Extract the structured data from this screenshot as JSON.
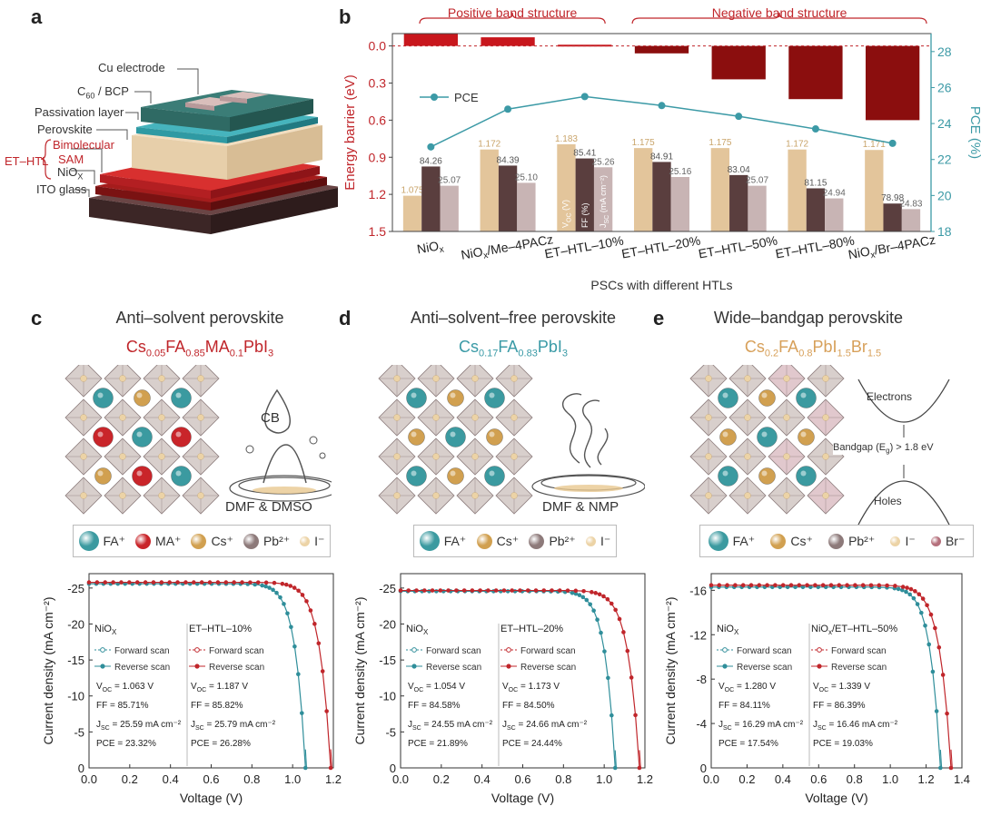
{
  "panels": {
    "a": "a",
    "b": "b",
    "c": "c",
    "d": "d",
    "e": "e"
  },
  "panel_a": {
    "labels": {
      "cu": "Cu electrode",
      "c60": "C",
      "c60sub": "60",
      "c60rest": " / BCP",
      "passivation": "Passivation layer",
      "perovskite": "Perovskite",
      "etl": "ET–HTL",
      "bimolecular": "Bimolecular",
      "sam": "SAM",
      "niox": "NiO",
      "nioxsub": "X",
      "ito": "ITO glass"
    },
    "colors": {
      "passivation": "#3a9aa0",
      "perovskite": "#e8d2b0",
      "sam": "#c0262b",
      "niox": "#8a1c1c",
      "ito": "#4a3030",
      "top": "#2f6f6a",
      "cu": "#c8a9a6"
    }
  },
  "panel_b": {
    "bracket_labels": {
      "positive": "Positive band structure",
      "negative": "Negative band structure"
    },
    "legend_pce": "PCE",
    "bar_annot": {
      "voc": "V",
      "vocsub": "OC",
      "vocunit": " (V)",
      "ff": "FF (%)",
      "jsc": "J",
      "jscsub": "SC",
      "jscunit": " (mA cm⁻²)"
    },
    "xlabels": [
      {
        "main": "NiO",
        "sub": "x",
        "tail": ""
      },
      {
        "main": "NiO",
        "sub": "x",
        "tail": "/Me–4PACz"
      },
      {
        "main": "ET–HTL–10%",
        "sub": "",
        "tail": ""
      },
      {
        "main": "ET–HTL–20%",
        "sub": "",
        "tail": ""
      },
      {
        "main": "ET–HTL–50%",
        "sub": "",
        "tail": ""
      },
      {
        "main": "ET–HTL–80%",
        "sub": "",
        "tail": ""
      },
      {
        "main": "NiO",
        "sub": "x",
        "tail": "/Br–4PACz"
      }
    ],
    "colors": {
      "pos": "#c8171d",
      "neg": "#8b0e0e",
      "pce": "#3c9aa6",
      "voc": "#e3c59b",
      "ff": "#5a3e3e",
      "jsc": "#c8b4b4"
    }
  },
  "chart_data": [
    {
      "type": "bar",
      "title": "",
      "xlabel": "PSCs with different HTLs",
      "ylabel": "Energy barrier (eV)",
      "y2label": "PCE (%)",
      "categories": [
        "NiOx",
        "NiOx/Me-4PACz",
        "ET-HTL-10%",
        "ET-HTL-20%",
        "ET-HTL-50%",
        "ET-HTL-80%",
        "NiOx/Br-4PACz"
      ],
      "ylim": [
        1.5,
        -0.1
      ],
      "y2lim": [
        18,
        29
      ],
      "yticks": [
        "0.0",
        "0.3",
        "0.6",
        "0.9",
        "1.2",
        "1.5"
      ],
      "y2ticks": [
        "18",
        "20",
        "22",
        "24",
        "26",
        "28"
      ],
      "series": [
        {
          "name": "Energy barrier",
          "values": [
            -0.1,
            -0.07,
            -0.01,
            0.06,
            0.27,
            0.43,
            0.6
          ]
        },
        {
          "name": "PCE",
          "values": [
            22.7,
            24.8,
            25.5,
            25.0,
            24.4,
            23.7,
            22.9
          ]
        },
        {
          "values": [
            1.075,
            1.172,
            1.183,
            1.175,
            1.175,
            1.172,
            1.171
          ],
          "labels": [
            "1.075",
            "1.172",
            "1.183",
            "1.175",
            "1.175",
            "1.172",
            "1.171"
          ]
        },
        {
          "values": [
            84.26,
            84.39,
            85.41,
            84.91,
            83.04,
            81.15,
            78.98
          ],
          "labels": [
            "84.26",
            "84.39",
            "85.41",
            "84.91",
            "83.04",
            "81.15",
            "78.98"
          ]
        },
        {
          "values": [
            25.07,
            25.1,
            25.26,
            25.16,
            25.07,
            24.94,
            24.83
          ],
          "labels": [
            "25.07",
            "25.10",
            "25.26",
            "25.16",
            "25.07",
            "24.94",
            "24.83"
          ]
        }
      ]
    },
    {
      "type": "line",
      "xlabel": "Voltage (V)",
      "ylabel": "Current density (mA cm⁻²)",
      "xlim": [
        0,
        1.2
      ],
      "ylim": [
        0,
        -27
      ],
      "xticks": [
        "0.0",
        "0.2",
        "0.4",
        "0.6",
        "0.8",
        "1.0",
        "1.2"
      ],
      "yticks": [
        "0",
        "-5",
        "-10",
        "-15",
        "-20",
        "-25"
      ],
      "series": [
        {
          "name": "NiOx",
          "voc": 1.063,
          "jsc": 25.59,
          "n": 1.5
        },
        {
          "name": "ET–HTL–10%",
          "voc": 1.187,
          "jsc": 25.79,
          "n": 1.55
        }
      ]
    },
    {
      "type": "line",
      "xlabel": "Voltage (V)",
      "ylabel": "Current density (mA cm⁻²)",
      "xlim": [
        0,
        1.2
      ],
      "ylim": [
        0,
        -27
      ],
      "xticks": [
        "0.0",
        "0.2",
        "0.4",
        "0.6",
        "0.8",
        "1.0",
        "1.2"
      ],
      "yticks": [
        "0",
        "-5",
        "-10",
        "-15",
        "-20",
        "-25"
      ],
      "series": [
        {
          "name": "NiOx",
          "voc": 1.054,
          "jsc": 24.55,
          "n": 1.5
        },
        {
          "name": "ET–HTL–20%",
          "voc": 1.173,
          "jsc": 24.66,
          "n": 1.5
        }
      ]
    },
    {
      "type": "line",
      "xlabel": "Voltage (V)",
      "ylabel": "Current density (mA cm⁻²)",
      "xlim": [
        0,
        1.4
      ],
      "ylim": [
        0,
        -17.5
      ],
      "xticks": [
        "0.0",
        "0.2",
        "0.4",
        "0.6",
        "0.8",
        "1.0",
        "1.2",
        "1.4"
      ],
      "yticks": [
        "0",
        "-4",
        "-8",
        "-12",
        "-16"
      ],
      "series": [
        {
          "name": "NiOx",
          "voc": 1.28,
          "jsc": 16.29,
          "n": 1.6
        },
        {
          "name": "NiOx/ET–HTL–50%",
          "voc": 1.339,
          "jsc": 16.46,
          "n": 1.5
        }
      ]
    }
  ],
  "panel_c": {
    "title": "Anti–solvent perovskite",
    "formula": [
      [
        "Cs",
        ""
      ],
      [
        "0.05",
        "s"
      ],
      [
        "FA",
        ""
      ],
      [
        "0.85",
        "s"
      ],
      [
        "MA",
        ""
      ],
      [
        "0.1",
        "s"
      ],
      [
        "PbI",
        ""
      ],
      [
        "3",
        "s"
      ]
    ],
    "process_top": "CB",
    "process_bottom": "DMF & DMSO",
    "legend": [
      [
        "FA⁺",
        "#3b9aa0"
      ],
      [
        "MA⁺",
        "#c9252a"
      ],
      [
        "Cs⁺",
        "#d1a050"
      ],
      [
        "Pb²⁺",
        "#8d7a7a"
      ],
      [
        "I⁻",
        "#ecd3a6"
      ]
    ],
    "jv_legend": {
      "left_head": "NiO",
      "left_head_sub": "X",
      "right_head": "ET–HTL–10%",
      "fwd": "Forward scan",
      "rev": "Reverse scan"
    },
    "jv_stats": {
      "left": [
        [
          "V",
          "OC",
          " = 1.063 V"
        ],
        [
          "FF",
          "",
          "= 85.71%"
        ],
        [
          "J",
          "SC",
          " = 25.59 mA cm⁻²"
        ],
        [
          "PCE",
          "",
          "= 23.32%"
        ]
      ],
      "right": [
        [
          "V",
          "OC",
          " = 1.187 V"
        ],
        [
          "FF",
          "",
          "= 85.82%"
        ],
        [
          "J",
          "SC",
          " = 25.79 mA cm⁻²"
        ],
        [
          "PCE",
          "",
          "= 26.28%"
        ]
      ]
    }
  },
  "panel_d": {
    "title": "Anti–solvent–free perovskite",
    "formula": [
      [
        "Cs",
        ""
      ],
      [
        "0.17",
        "s"
      ],
      [
        "FA",
        ""
      ],
      [
        "0.83",
        "s"
      ],
      [
        "PbI",
        ""
      ],
      [
        "3",
        "s"
      ]
    ],
    "process_bottom": "DMF & NMP",
    "legend": [
      [
        "FA⁺",
        "#3b9aa0"
      ],
      [
        "Cs⁺",
        "#d1a050"
      ],
      [
        "Pb²⁺",
        "#8d7a7a"
      ],
      [
        "I⁻",
        "#ecd3a6"
      ]
    ],
    "jv_legend": {
      "left_head": "NiO",
      "left_head_sub": "X",
      "right_head": "ET–HTL–20%",
      "fwd": "Forward scan",
      "rev": "Reverse scan"
    },
    "jv_stats": {
      "left": [
        [
          "V",
          "OC",
          " = 1.054 V"
        ],
        [
          "FF",
          "",
          "= 84.58%"
        ],
        [
          "J",
          "SC",
          " = 24.55 mA cm⁻²"
        ],
        [
          "PCE",
          "",
          "= 21.89%"
        ]
      ],
      "right": [
        [
          "V",
          "OC",
          " = 1.173 V"
        ],
        [
          "FF",
          "",
          "= 84.50%"
        ],
        [
          "J",
          "SC",
          " = 24.66 mA cm⁻²"
        ],
        [
          "PCE",
          "",
          "= 24.44%"
        ]
      ]
    }
  },
  "panel_e": {
    "title": "Wide–bandgap perovskite",
    "formula": [
      [
        "Cs",
        ""
      ],
      [
        "0.2",
        "s"
      ],
      [
        "FA",
        ""
      ],
      [
        "0.8",
        "s"
      ],
      [
        "PbI",
        ""
      ],
      [
        "1.5",
        "s"
      ],
      [
        "Br",
        ""
      ],
      [
        "1.5",
        "s"
      ]
    ],
    "electrons": "Electrons",
    "holes": "Holes",
    "bandgap": "Bandgap (E",
    "bandgap_sub": "g",
    "bandgap_tail": ") > 1.8 eV",
    "legend": [
      [
        "FA⁺",
        "#3b9aa0"
      ],
      [
        "Cs⁺",
        "#d1a050"
      ],
      [
        "Pb²⁺",
        "#8d7a7a"
      ],
      [
        "I⁻",
        "#ecd3a6"
      ],
      [
        "Br⁻",
        "#b5707c"
      ]
    ],
    "jv_legend": {
      "left_head": "NiO",
      "left_head_sub": "X",
      "right_head": "NiO",
      "right_head_sub": "x",
      "right_head_tail": "/ET–HTL–50%",
      "fwd": "Forward scan",
      "rev": "Reverse scan"
    },
    "jv_stats": {
      "left": [
        [
          "V",
          "OC",
          " = 1.280 V"
        ],
        [
          "FF",
          "",
          "= 84.11%"
        ],
        [
          "J",
          "SC",
          " = 16.29 mA cm⁻²"
        ],
        [
          "PCE",
          "",
          "= 17.54%"
        ]
      ],
      "right": [
        [
          "V",
          "OC",
          " = 1.339 V"
        ],
        [
          "FF",
          "",
          "= 86.39%"
        ],
        [
          "J",
          "SC",
          " = 16.46 mA cm⁻²"
        ],
        [
          "PCE",
          "",
          "= 19.03%"
        ]
      ]
    }
  },
  "jv_colors": {
    "left": "#2f8e9a",
    "right": "#c0262b"
  }
}
